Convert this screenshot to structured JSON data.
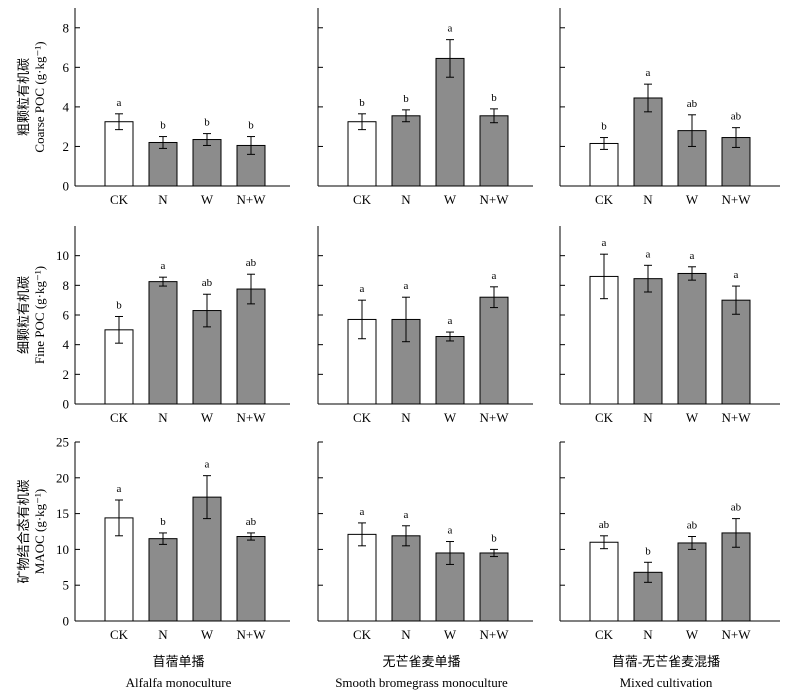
{
  "figure": {
    "categories": [
      "CK",
      "N",
      "W",
      "N+W"
    ],
    "column_labels": [
      {
        "zh": "苜蓿单播",
        "en": "Alfalfa monoculture"
      },
      {
        "zh": "无芒雀麦单播",
        "en": "Smooth bromegrass monoculture"
      },
      {
        "zh": "苜蓿-无芒雀麦混播",
        "en": "Mixed cultivation"
      }
    ],
    "row_labels": [
      {
        "zh": "粗颗粒有机碳",
        "en": "Coarse POC (g·kg⁻¹)"
      },
      {
        "zh": "细颗粒有机碳",
        "en": "Fine POC (g·kg⁻¹)"
      },
      {
        "zh": "矿物结合态有机碳",
        "en": "MAOC (g·kg⁻¹)"
      }
    ],
    "colors": {
      "ck_fill": "#ffffff",
      "treatment_fill": "#8c8c8c",
      "stroke": "#000000"
    }
  },
  "chart_data": [
    {
      "type": "bar",
      "row": "Coarse POC",
      "column": "Alfalfa monoculture",
      "categories": [
        "CK",
        "N",
        "W",
        "N+W"
      ],
      "values": [
        3.25,
        2.2,
        2.35,
        2.05
      ],
      "errors": [
        0.4,
        0.3,
        0.3,
        0.45
      ],
      "letters": [
        "a",
        "b",
        "b",
        "b"
      ],
      "ylim": [
        0,
        9
      ],
      "yticks": [
        0,
        2,
        4,
        6,
        8
      ]
    },
    {
      "type": "bar",
      "row": "Coarse POC",
      "column": "Smooth bromegrass monoculture",
      "categories": [
        "CK",
        "N",
        "W",
        "N+W"
      ],
      "values": [
        3.25,
        3.55,
        6.45,
        3.55
      ],
      "errors": [
        0.4,
        0.3,
        0.95,
        0.35
      ],
      "letters": [
        "b",
        "b",
        "a",
        "b"
      ],
      "ylim": [
        0,
        9
      ],
      "yticks": [
        0,
        2,
        4,
        6,
        8
      ]
    },
    {
      "type": "bar",
      "row": "Coarse POC",
      "column": "Mixed cultivation",
      "categories": [
        "CK",
        "N",
        "W",
        "N+W"
      ],
      "values": [
        2.15,
        4.45,
        2.8,
        2.45
      ],
      "errors": [
        0.3,
        0.7,
        0.8,
        0.5
      ],
      "letters": [
        "b",
        "a",
        "ab",
        "ab"
      ],
      "ylim": [
        0,
        9
      ],
      "yticks": [
        0,
        2,
        4,
        6,
        8
      ]
    },
    {
      "type": "bar",
      "row": "Fine POC",
      "column": "Alfalfa monoculture",
      "categories": [
        "CK",
        "N",
        "W",
        "N+W"
      ],
      "values": [
        5.0,
        8.25,
        6.3,
        7.75
      ],
      "errors": [
        0.9,
        0.3,
        1.1,
        1.0
      ],
      "letters": [
        "b",
        "a",
        "ab",
        "ab"
      ],
      "ylim": [
        0,
        12
      ],
      "yticks": [
        0,
        2,
        4,
        6,
        8,
        10
      ]
    },
    {
      "type": "bar",
      "row": "Fine POC",
      "column": "Smooth bromegrass monoculture",
      "categories": [
        "CK",
        "N",
        "W",
        "N+W"
      ],
      "values": [
        5.7,
        5.7,
        4.55,
        7.2
      ],
      "errors": [
        1.3,
        1.5,
        0.3,
        0.7
      ],
      "letters": [
        "a",
        "a",
        "a",
        "a"
      ],
      "ylim": [
        0,
        12
      ],
      "yticks": [
        0,
        2,
        4,
        6,
        8,
        10
      ]
    },
    {
      "type": "bar",
      "row": "Fine POC",
      "column": "Mixed cultivation",
      "categories": [
        "CK",
        "N",
        "W",
        "N+W"
      ],
      "values": [
        8.6,
        8.45,
        8.8,
        7.0
      ],
      "errors": [
        1.5,
        0.9,
        0.45,
        0.95
      ],
      "letters": [
        "a",
        "a",
        "a",
        "a"
      ],
      "ylim": [
        0,
        12
      ],
      "yticks": [
        0,
        2,
        4,
        6,
        8,
        10
      ]
    },
    {
      "type": "bar",
      "row": "MAOC",
      "column": "Alfalfa monoculture",
      "categories": [
        "CK",
        "N",
        "W",
        "N+W"
      ],
      "values": [
        14.4,
        11.5,
        17.3,
        11.8
      ],
      "errors": [
        2.5,
        0.8,
        3.0,
        0.5
      ],
      "letters": [
        "a",
        "b",
        "a",
        "ab"
      ],
      "ylim": [
        0,
        25
      ],
      "yticks": [
        0,
        5,
        10,
        15,
        20,
        25
      ]
    },
    {
      "type": "bar",
      "row": "MAOC",
      "column": "Smooth bromegrass monoculture",
      "categories": [
        "CK",
        "N",
        "W",
        "N+W"
      ],
      "values": [
        12.1,
        11.9,
        9.5,
        9.5
      ],
      "errors": [
        1.6,
        1.4,
        1.6,
        0.5
      ],
      "letters": [
        "a",
        "a",
        "a",
        "b"
      ],
      "ylim": [
        0,
        25
      ],
      "yticks": [
        0,
        5,
        10,
        15,
        20,
        25
      ]
    },
    {
      "type": "bar",
      "row": "MAOC",
      "column": "Mixed cultivation",
      "categories": [
        "CK",
        "N",
        "W",
        "N+W"
      ],
      "values": [
        11.0,
        6.8,
        10.9,
        12.3
      ],
      "errors": [
        0.9,
        1.4,
        0.9,
        2.0
      ],
      "letters": [
        "ab",
        "b",
        "ab",
        "ab"
      ],
      "ylim": [
        0,
        25
      ],
      "yticks": [
        0,
        5,
        10,
        15,
        20,
        25
      ]
    }
  ]
}
